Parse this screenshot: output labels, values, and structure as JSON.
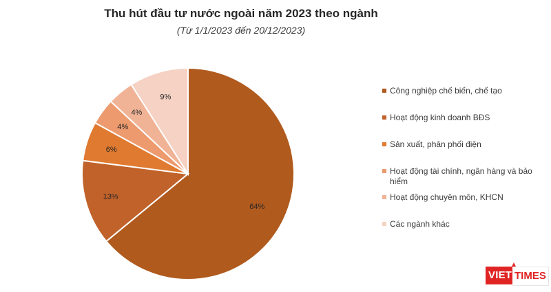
{
  "chart_data": {
    "type": "pie",
    "title": "Thu hút đầu tư nước ngoài năm 2023 theo ngành",
    "subtitle": "(Từ 1/1/2023 đến 20/12/2023)",
    "slices": [
      {
        "label": "Công nghiệp chế biến, chế tạo",
        "value": 64,
        "display": "64%",
        "color": "#b05a1e"
      },
      {
        "label": "Hoạt động kinh doanh BĐS",
        "value": 13,
        "display": "13%",
        "color": "#c0622a"
      },
      {
        "label": "Sản xuất, phân phối điện",
        "value": 6,
        "display": "6%",
        "color": "#e07a30"
      },
      {
        "label": "Hoạt động tài chính, ngân hàng và bảo hiểm",
        "value": 4,
        "display": "4%",
        "color": "#ec9a6e"
      },
      {
        "label": "Hoạt động chuyên môn, KHCN",
        "value": 4,
        "display": "4%",
        "color": "#f1b396"
      },
      {
        "label": "Các ngành khác",
        "value": 9,
        "display": "9%",
        "color": "#f6d2c4"
      }
    ],
    "legend_position": "right"
  },
  "logo": {
    "viet": "VIET",
    "times": "TIMES"
  }
}
